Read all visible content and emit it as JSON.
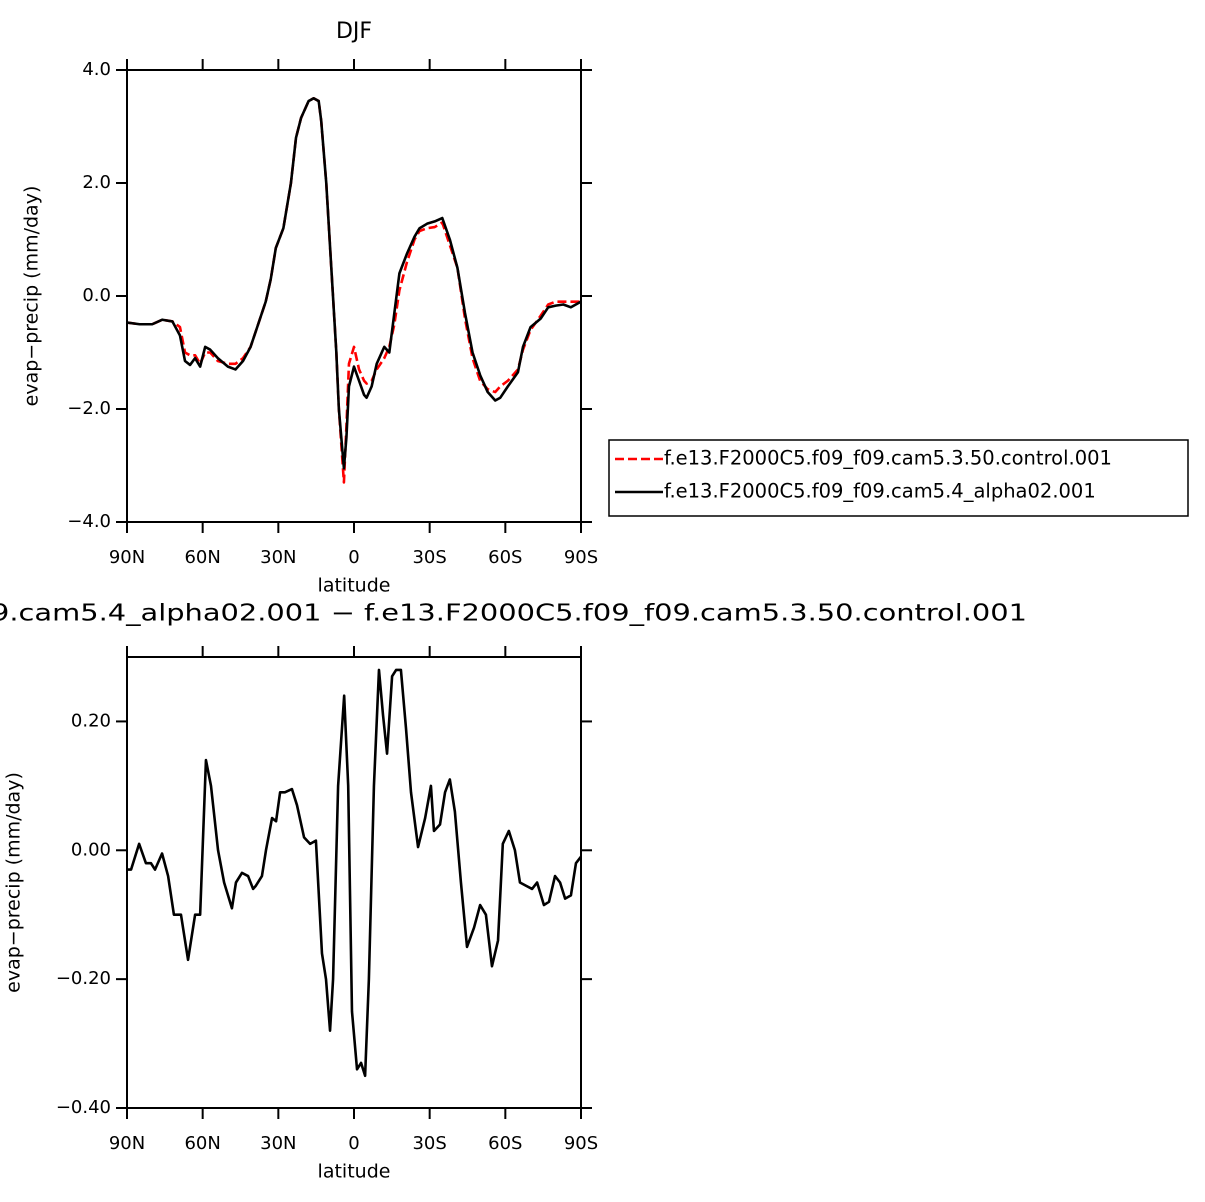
{
  "chart_data": [
    {
      "type": "line",
      "title": "DJF",
      "xlabel": "latitude",
      "ylabel": "evap−precip (mm/day)",
      "x": [
        90,
        85,
        80,
        76,
        72,
        69,
        67,
        65,
        63,
        61,
        59,
        57,
        54,
        50,
        47,
        44,
        41,
        38,
        35,
        33,
        31,
        28,
        25,
        23,
        21,
        18,
        16,
        14,
        13,
        11,
        9,
        7,
        6,
        4,
        3,
        2,
        0,
        -2,
        -4,
        -5,
        -7,
        -9,
        -12,
        -14,
        -16,
        -18,
        -21,
        -24,
        -26,
        -29,
        -32,
        -35,
        -38,
        -41,
        -44,
        -47,
        -50,
        -53,
        -56,
        -58,
        -61,
        -65,
        -67,
        -70,
        -74,
        -77,
        -80,
        -83,
        -86,
        -90
      ],
      "series": [
        {
          "name": "f.e13.F2000C5.f09_f09.cam5.3.50.control.001",
          "color": "#ff0000",
          "dash": true,
          "values": [
            -0.47,
            -0.5,
            -0.5,
            -0.42,
            -0.45,
            -0.55,
            -1.0,
            -1.05,
            -1.05,
            -1.2,
            -1.0,
            -1.0,
            -1.15,
            -1.2,
            -1.2,
            -1.1,
            -0.9,
            -0.5,
            -0.1,
            0.3,
            0.85,
            1.2,
            2.0,
            2.8,
            3.15,
            3.45,
            3.5,
            3.45,
            3.1,
            2.0,
            0.5,
            -1.0,
            -2.0,
            -3.3,
            -2.3,
            -1.2,
            -0.9,
            -1.3,
            -1.5,
            -1.55,
            -1.5,
            -1.3,
            -1.1,
            -0.9,
            -0.5,
            0.1,
            0.6,
            1.0,
            1.15,
            1.2,
            1.22,
            1.3,
            0.9,
            0.5,
            -0.4,
            -1.1,
            -1.5,
            -1.65,
            -1.7,
            -1.6,
            -1.5,
            -1.3,
            -0.95,
            -0.6,
            -0.35,
            -0.15,
            -0.1,
            -0.1,
            -0.1,
            -0.1
          ]
        },
        {
          "name": "f.e13.F2000C5.f09_f09.cam5.4_alpha02.001",
          "color": "#000000",
          "dash": false,
          "values": [
            -0.47,
            -0.5,
            -0.5,
            -0.42,
            -0.45,
            -0.7,
            -1.15,
            -1.22,
            -1.1,
            -1.25,
            -0.9,
            -0.95,
            -1.1,
            -1.25,
            -1.3,
            -1.15,
            -0.9,
            -0.5,
            -0.1,
            0.3,
            0.85,
            1.2,
            2.0,
            2.8,
            3.15,
            3.45,
            3.5,
            3.45,
            3.1,
            2.0,
            0.5,
            -1.0,
            -2.0,
            -3.05,
            -2.5,
            -1.6,
            -1.25,
            -1.5,
            -1.75,
            -1.8,
            -1.6,
            -1.2,
            -0.9,
            -1.0,
            -0.3,
            0.4,
            0.75,
            1.05,
            1.2,
            1.28,
            1.32,
            1.38,
            1.0,
            0.5,
            -0.3,
            -1.0,
            -1.4,
            -1.7,
            -1.85,
            -1.8,
            -1.6,
            -1.35,
            -0.9,
            -0.55,
            -0.4,
            -0.2,
            -0.17,
            -0.15,
            -0.2,
            -0.1
          ]
        }
      ],
      "xlim": [
        90,
        -90
      ],
      "xticks": [
        {
          "value": 90,
          "label": "90N"
        },
        {
          "value": 60,
          "label": "60N"
        },
        {
          "value": 30,
          "label": "30N"
        },
        0,
        {
          "value": -30,
          "label": "30S"
        },
        {
          "value": -60,
          "label": "60S"
        },
        {
          "value": -90,
          "label": "90S"
        }
      ],
      "ylim": [
        -4,
        4
      ],
      "yticks": [
        {
          "value": -4,
          "label": "−4.0"
        },
        {
          "value": -2,
          "label": "−2.0"
        },
        {
          "value": 0,
          "label": "0.0"
        },
        {
          "value": 2,
          "label": "2.0"
        },
        {
          "value": 4,
          "label": "4.0"
        }
      ],
      "legend": "right",
      "grid": false
    },
    {
      "type": "line",
      "title": "9.cam5.4_alpha02.001 − f.e13.F2000C5.f09_f09.cam5.3.50.control.001",
      "xlabel": "latitude",
      "ylabel": "evap−precip (mm/day)",
      "x": [
        90,
        88.4,
        85.2,
        82.5,
        80.5,
        78.9,
        76.1,
        73.7,
        71.4,
        68.6,
        65.8,
        63,
        61,
        58.7,
        56.7,
        53.9,
        51.5,
        48.4,
        46.8,
        44.4,
        42,
        40,
        38.9,
        36.5,
        34.9,
        32.5,
        30.9,
        29.3,
        27.4,
        24.6,
        22.6,
        19.8,
        17.4,
        15.1,
        12.7,
        11.1,
        9.5,
        8.3,
        6.3,
        3.9,
        2.3,
        0.8,
        -1.2,
        -2.8,
        -4.4,
        -5.9,
        -7.9,
        -9.9,
        -11.5,
        -13.1,
        -15.1,
        -16.7,
        -18.6,
        -20.6,
        -22.6,
        -25.4,
        -28.2,
        -30.5,
        -31.7,
        -34.1,
        -36.1,
        -38,
        -40,
        -42.4,
        -44.8,
        -47.6,
        -50,
        -52.3,
        -54.7,
        -57.1,
        -59,
        -61.4,
        -63.8,
        -65.8,
        -68.2,
        -70.6,
        -72.6,
        -75.3,
        -77.3,
        -79.7,
        -81.7,
        -83.7,
        -86,
        -88,
        -90
      ],
      "values": [
        -0.03,
        -0.03,
        0.01,
        -0.02,
        -0.02,
        -0.03,
        -0.005,
        -0.04,
        -0.1,
        -0.1,
        -0.17,
        -0.1,
        -0.1,
        0.14,
        0.1,
        0.0,
        -0.05,
        -0.09,
        -0.05,
        -0.035,
        -0.04,
        -0.06,
        -0.055,
        -0.04,
        0.0,
        0.05,
        0.045,
        0.09,
        0.09,
        0.095,
        0.07,
        0.02,
        0.01,
        0.015,
        -0.16,
        -0.2,
        -0.28,
        -0.2,
        0.1,
        0.24,
        0.1,
        -0.25,
        -0.34,
        -0.33,
        -0.35,
        -0.2,
        0.1,
        0.28,
        0.21,
        0.15,
        0.27,
        0.28,
        0.28,
        0.19,
        0.09,
        0.005,
        0.05,
        0.1,
        0.03,
        0.04,
        0.09,
        0.11,
        0.06,
        -0.05,
        -0.15,
        -0.12,
        -0.085,
        -0.1,
        -0.18,
        -0.14,
        0.01,
        0.03,
        0.0,
        -0.05,
        -0.055,
        -0.06,
        -0.05,
        -0.085,
        -0.08,
        -0.04,
        -0.05,
        -0.075,
        -0.07,
        -0.02,
        -0.01
      ],
      "color": "#000000",
      "xlim": [
        90,
        -90
      ],
      "xticks": [
        {
          "value": 90,
          "label": "90N"
        },
        {
          "value": 60,
          "label": "60N"
        },
        {
          "value": 30,
          "label": "30N"
        },
        0,
        {
          "value": -30,
          "label": "30S"
        },
        {
          "value": -60,
          "label": "60S"
        },
        {
          "value": -90,
          "label": "90S"
        }
      ],
      "ylim": [
        -0.4,
        0.3
      ],
      "yticks": [
        {
          "value": -0.4,
          "label": "−0.40"
        },
        {
          "value": -0.2,
          "label": "−0.20"
        },
        {
          "value": 0,
          "label": "0.00"
        },
        {
          "value": 0.2,
          "label": "0.20"
        }
      ],
      "grid": false
    }
  ]
}
